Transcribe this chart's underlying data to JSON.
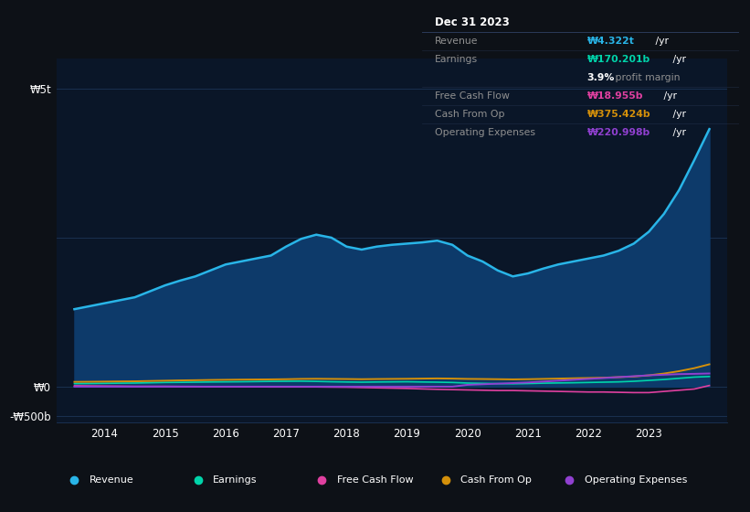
{
  "background_color": "#0d1117",
  "plot_bg_color": "#0a1628",
  "grid_color": "#1a3050",
  "revenue_color": "#29b5e8",
  "earnings_color": "#00d4aa",
  "fcf_color": "#e040a0",
  "cashfromop_color": "#d4900a",
  "opex_color": "#9040d0",
  "revenue_fill_color": "#0d3a6a",
  "legend_bg": "#131b2e",
  "legend_border": "#2a3a5a",
  "table_bg": "#050a10",
  "table_border": "#2a3a5a",
  "ylabel_5t": "₩5t",
  "ylabel_0": "₩0",
  "ylabel_neg500b": "-₩500b",
  "xlim": [
    2013.2,
    2024.3
  ],
  "ylim_bottom": -600,
  "ylim_top": 5500,
  "legend_items": [
    {
      "label": "Revenue",
      "color": "#29b5e8"
    },
    {
      "label": "Earnings",
      "color": "#00d4aa"
    },
    {
      "label": "Free Cash Flow",
      "color": "#e040a0"
    },
    {
      "label": "Cash From Op",
      "color": "#d4900a"
    },
    {
      "label": "Operating Expenses",
      "color": "#9040d0"
    }
  ],
  "table_title": "Dec 31 2023",
  "table_rows": [
    {
      "label": "Revenue",
      "value": "₩4.322t",
      "suffix": " /yr",
      "color": "#29b5e8"
    },
    {
      "label": "Earnings",
      "value": "₩170.201b",
      "suffix": " /yr",
      "color": "#00d4aa"
    },
    {
      "label": "",
      "value": "3.9%",
      "suffix": " profit margin",
      "color": "#ffffff"
    },
    {
      "label": "Free Cash Flow",
      "value": "₩18.955b",
      "suffix": " /yr",
      "color": "#e040a0"
    },
    {
      "label": "Cash From Op",
      "value": "₩375.424b",
      "suffix": " /yr",
      "color": "#d4900a"
    },
    {
      "label": "Operating Expenses",
      "value": "₩220.998b",
      "suffix": " /yr",
      "color": "#9040d0"
    }
  ],
  "x_years": [
    2013.5,
    2013.75,
    2014.0,
    2014.25,
    2014.5,
    2014.75,
    2015.0,
    2015.25,
    2015.5,
    2015.75,
    2016.0,
    2016.25,
    2016.5,
    2016.75,
    2017.0,
    2017.25,
    2017.5,
    2017.75,
    2018.0,
    2018.25,
    2018.5,
    2018.75,
    2019.0,
    2019.25,
    2019.5,
    2019.75,
    2020.0,
    2020.25,
    2020.5,
    2020.75,
    2021.0,
    2021.25,
    2021.5,
    2021.75,
    2022.0,
    2022.25,
    2022.5,
    2022.75,
    2023.0,
    2023.25,
    2023.5,
    2023.75,
    2024.0
  ],
  "revenue": [
    1300,
    1350,
    1400,
    1450,
    1500,
    1600,
    1700,
    1780,
    1850,
    1950,
    2050,
    2100,
    2150,
    2200,
    2350,
    2480,
    2550,
    2500,
    2350,
    2300,
    2350,
    2380,
    2400,
    2420,
    2450,
    2380,
    2200,
    2100,
    1950,
    1850,
    1900,
    1980,
    2050,
    2100,
    2150,
    2200,
    2280,
    2400,
    2600,
    2900,
    3300,
    3800,
    4322
  ],
  "earnings": [
    50,
    52,
    55,
    58,
    60,
    65,
    70,
    72,
    75,
    78,
    80,
    82,
    85,
    88,
    90,
    92,
    88,
    82,
    78,
    75,
    78,
    80,
    82,
    78,
    75,
    70,
    60,
    55,
    50,
    48,
    52,
    58,
    62,
    65,
    70,
    75,
    80,
    90,
    105,
    120,
    140,
    160,
    170
  ],
  "free_cash_flow": [
    15,
    12,
    10,
    8,
    5,
    5,
    5,
    3,
    2,
    0,
    0,
    -2,
    -3,
    -5,
    -5,
    -5,
    -5,
    -8,
    -10,
    -15,
    -20,
    -25,
    -30,
    -38,
    -45,
    -50,
    -55,
    -60,
    -65,
    -65,
    -70,
    -75,
    -80,
    -85,
    -90,
    -90,
    -95,
    -100,
    -100,
    -80,
    -60,
    -40,
    19
  ],
  "cash_from_op": [
    80,
    82,
    85,
    88,
    90,
    95,
    100,
    105,
    108,
    112,
    115,
    118,
    120,
    122,
    125,
    130,
    132,
    130,
    128,
    125,
    128,
    130,
    132,
    135,
    138,
    135,
    130,
    128,
    125,
    122,
    125,
    130,
    135,
    140,
    145,
    150,
    160,
    170,
    190,
    220,
    260,
    310,
    375
  ],
  "op_expenses": [
    0,
    0,
    0,
    0,
    0,
    0,
    0,
    0,
    0,
    0,
    0,
    0,
    0,
    0,
    0,
    0,
    0,
    0,
    0,
    0,
    0,
    0,
    0,
    0,
    0,
    0,
    30,
    40,
    50,
    60,
    70,
    85,
    100,
    115,
    130,
    145,
    160,
    175,
    190,
    200,
    210,
    215,
    221
  ]
}
